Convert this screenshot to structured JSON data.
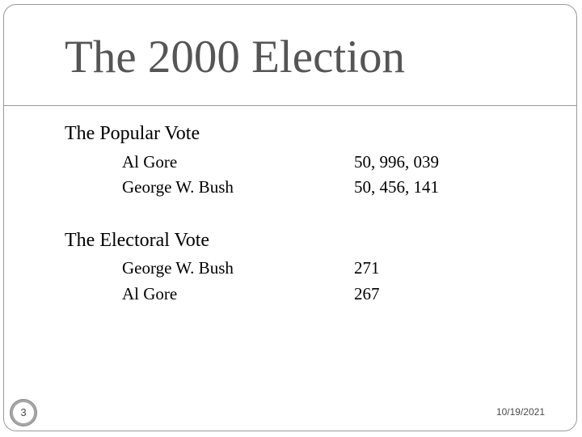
{
  "slide": {
    "title": "The 2000 Election",
    "number": "3",
    "date": "10/19/2021"
  },
  "popular_vote": {
    "heading": "The Popular Vote",
    "rows": [
      {
        "name": "Al Gore",
        "value": "50, 996, 039"
      },
      {
        "name": "George W. Bush",
        "value": "50, 456, 141"
      }
    ]
  },
  "electoral_vote": {
    "heading": "The Electoral Vote",
    "rows": [
      {
        "name": "George W. Bush",
        "value": "271"
      },
      {
        "name": "Al Gore",
        "value": "267"
      }
    ]
  }
}
